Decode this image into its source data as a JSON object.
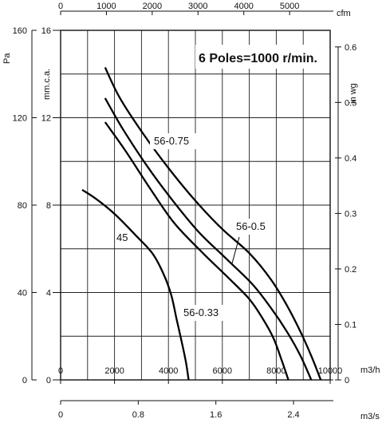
{
  "chart_data": {
    "type": "line",
    "title": "6 Poles=1000 r/min.",
    "x_primary": {
      "label": "m3/h",
      "range": [
        0,
        10000
      ],
      "ticks": [
        0,
        2000,
        4000,
        6000,
        8000,
        10000
      ],
      "tick_labels": [
        "0",
        "2000",
        "4000",
        "6000",
        "8000",
        "10000"
      ]
    },
    "x_top": {
      "label": "cfm",
      "ticks": [
        0,
        1000,
        2000,
        3000,
        4000,
        5000
      ],
      "tick_labels": [
        "0",
        "1000",
        "2000",
        "3000",
        "4000",
        "5000"
      ]
    },
    "x_bottom2": {
      "label": "m3/s",
      "ticks": [
        0,
        0.8,
        1.6,
        2.4
      ],
      "tick_labels": [
        "0",
        "0.8",
        "1.6",
        "2.4"
      ]
    },
    "y_pa": {
      "label": "Pa",
      "ticks": [
        0,
        40,
        80,
        120,
        160
      ],
      "tick_labels": [
        "0",
        "40",
        "80",
        "120",
        "160"
      ]
    },
    "y_mm": {
      "label": "mm.c.a.",
      "range": [
        0,
        16
      ],
      "ticks": [
        0,
        4,
        8,
        12,
        16
      ],
      "tick_labels": [
        "0",
        "4",
        "8",
        "12",
        "16"
      ]
    },
    "y_inwg": {
      "label": "in wg",
      "ticks": [
        0,
        0.1,
        0.2,
        0.3,
        0.4,
        0.5,
        0.6
      ],
      "tick_labels": [
        "0",
        "0.1",
        "0.2",
        "0.3",
        "0.4",
        "0.5",
        "0.6"
      ]
    },
    "grid": true,
    "series": [
      {
        "name": "45",
        "x": [
          800,
          1300,
          2000,
          2800,
          3400,
          3800,
          4100,
          4300,
          4500,
          4650,
          4750
        ],
        "y": [
          8.7,
          8.3,
          7.6,
          6.6,
          5.8,
          4.9,
          3.9,
          2.8,
          1.7,
          0.8,
          0
        ]
      },
      {
        "name": "56-0.33",
        "x": [
          1650,
          2400,
          3300,
          4200,
          5200,
          6200,
          7000,
          7500,
          7900,
          8200,
          8450
        ],
        "y": [
          11.8,
          10.5,
          8.8,
          7.2,
          5.9,
          4.7,
          3.7,
          2.8,
          1.9,
          0.9,
          0
        ]
      },
      {
        "name": "56-0.5",
        "x": [
          1650,
          2300,
          3200,
          4100,
          5100,
          6100,
          7100,
          7800,
          8400,
          8900,
          9300
        ],
        "y": [
          12.9,
          11.5,
          9.8,
          8.3,
          6.8,
          5.6,
          4.4,
          3.3,
          2.2,
          1.1,
          0
        ]
      },
      {
        "name": "56-0.75",
        "x": [
          1650,
          2200,
          3100,
          4000,
          5000,
          6000,
          7000,
          7800,
          8400,
          8900,
          9300,
          9650
        ],
        "y": [
          14.3,
          12.9,
          11.2,
          9.7,
          8.2,
          6.9,
          5.8,
          4.6,
          3.4,
          2.2,
          1.1,
          0
        ]
      }
    ],
    "curve_labels": [
      "56-0.75",
      "56-0.5",
      "56-0.33",
      "45"
    ]
  }
}
